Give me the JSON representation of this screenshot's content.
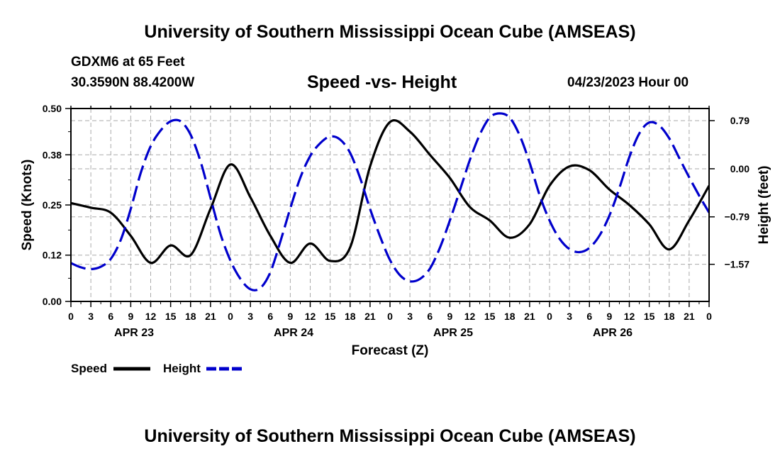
{
  "header": {
    "title": "University of Southern Mississippi Ocean Cube (AMSEAS)",
    "station": "GDXM6 at 65 Feet",
    "coords": "30.3590N  88.4200W",
    "chart_title": "Speed -vs- Height",
    "date": "04/23/2023 Hour 00"
  },
  "footer": {
    "title": "University of Southern Mississippi Ocean Cube (AMSEAS)"
  },
  "legend": {
    "speed_label": "Speed",
    "height_label": "Height"
  },
  "colors": {
    "speed": "#000000",
    "height": "#0000cc",
    "grid": "#aaaaaa"
  },
  "chart_data": {
    "type": "line",
    "title": "Speed -vs- Height",
    "xlabel": "Forecast (Z)",
    "ylabel": "Speed (Knots)",
    "y2label": "Height (feet)",
    "xlim": [
      0,
      96
    ],
    "ylim": [
      0,
      0.5
    ],
    "y2lim": [
      -2.18,
      0.99
    ],
    "x_tick_labels": [
      "0",
      "3",
      "6",
      "9",
      "12",
      "15",
      "18",
      "21",
      "0",
      "3",
      "6",
      "9",
      "12",
      "15",
      "18",
      "21",
      "0",
      "3",
      "6",
      "9",
      "12",
      "15",
      "18",
      "21",
      "0",
      "3",
      "6",
      "9",
      "12",
      "15",
      "18",
      "21",
      "0"
    ],
    "y_ticks": [
      0.0,
      0.12,
      0.25,
      0.38,
      0.5
    ],
    "y_tick_labels": [
      "0.00",
      "0.12",
      "0.25",
      "0.38",
      "0.50"
    ],
    "y2_ticks": [
      0.79,
      0.0,
      -0.79,
      -1.57
    ],
    "y2_tick_labels": [
      "0.79",
      "0.00",
      "−0.79",
      "−1.57"
    ],
    "day_labels": [
      {
        "x": 9.5,
        "label": "APR 23"
      },
      {
        "x": 33.5,
        "label": "APR 24"
      },
      {
        "x": 57.5,
        "label": "APR 25"
      },
      {
        "x": 81.5,
        "label": "APR 26"
      }
    ],
    "series": [
      {
        "name": "Speed",
        "axis": "left",
        "style": "solid",
        "x": [
          0,
          3,
          6,
          9,
          12,
          15,
          18,
          21,
          24,
          27,
          30,
          33,
          36,
          39,
          42,
          45,
          48,
          51,
          54,
          57,
          60,
          63,
          66,
          69,
          72,
          75,
          78,
          81,
          84,
          87,
          90,
          93,
          96
        ],
        "values": [
          0.255,
          0.243,
          0.23,
          0.17,
          0.1,
          0.145,
          0.12,
          0.24,
          0.355,
          0.27,
          0.17,
          0.1,
          0.15,
          0.105,
          0.14,
          0.35,
          0.465,
          0.44,
          0.38,
          0.32,
          0.245,
          0.21,
          0.165,
          0.2,
          0.3,
          0.35,
          0.34,
          0.29,
          0.25,
          0.2,
          0.135,
          0.21,
          0.3
        ]
      },
      {
        "name": "Height",
        "axis": "right",
        "style": "dashed",
        "x": [
          0,
          1.5,
          3,
          4.5,
          6,
          7.5,
          9,
          10.5,
          12,
          13.5,
          15,
          16.5,
          18,
          19.5,
          21,
          22.5,
          24,
          25.5,
          27,
          28.5,
          30,
          31.5,
          33,
          34.5,
          36,
          37.5,
          39,
          40.5,
          42,
          43.5,
          45,
          46.5,
          48,
          49.5,
          51,
          52.5,
          54,
          55.5,
          57,
          58.5,
          60,
          61.5,
          63,
          64.5,
          66,
          67.5,
          69,
          70.5,
          72,
          73.5,
          75,
          76.5,
          78,
          79.5,
          81,
          82.5,
          84,
          85.5,
          87,
          88.5,
          90,
          91.5,
          93,
          94.5,
          96
        ],
        "values": [
          -1.55,
          -1.62,
          -1.65,
          -1.61,
          -1.48,
          -1.17,
          -0.66,
          -0.07,
          0.37,
          0.63,
          0.78,
          0.78,
          0.56,
          0.12,
          -0.48,
          -1.07,
          -1.51,
          -1.81,
          -1.98,
          -1.96,
          -1.7,
          -1.2,
          -0.65,
          -0.15,
          0.21,
          0.42,
          0.53,
          0.48,
          0.26,
          -0.15,
          -0.66,
          -1.11,
          -1.5,
          -1.75,
          -1.85,
          -1.81,
          -1.64,
          -1.3,
          -0.85,
          -0.36,
          0.14,
          0.56,
          0.84,
          0.91,
          0.84,
          0.55,
          0.1,
          -0.43,
          -0.85,
          -1.15,
          -1.32,
          -1.37,
          -1.3,
          -1.1,
          -0.77,
          -0.32,
          0.19,
          0.58,
          0.76,
          0.71,
          0.5,
          0.18,
          -0.14,
          -0.44,
          -0.72
        ]
      }
    ]
  }
}
